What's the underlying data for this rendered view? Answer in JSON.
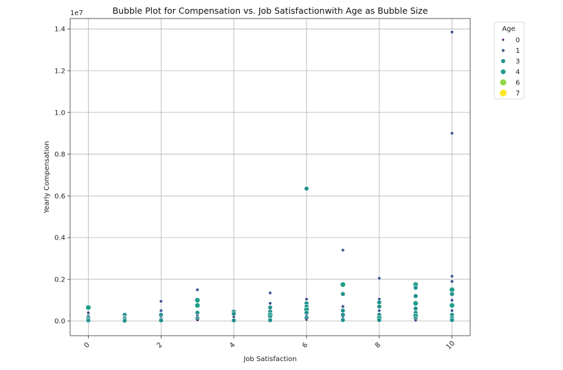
{
  "chart_data": {
    "type": "scatter",
    "title": "Bubble Plot for Compensation vs. Job Satisfactionwith Age as Bubble Size",
    "xlabel": "Job Satisfaction",
    "ylabel": "Yearly Compensation",
    "y_offset_label": "1e7",
    "xlim": [
      -0.5,
      10.5
    ],
    "ylim": [
      -0.07,
      1.45
    ],
    "y_scale_factor": 10000000,
    "x_ticks": [
      0,
      2,
      4,
      6,
      8,
      10
    ],
    "x_tick_labels": [
      "0",
      "2",
      "4",
      "6",
      "8",
      "10"
    ],
    "y_ticks": [
      0.0,
      0.2,
      0.4,
      0.6,
      0.8,
      1.0,
      1.2,
      1.4
    ],
    "y_tick_labels": [
      "0.0",
      "0.2",
      "0.4",
      "0.6",
      "0.8",
      "1.0",
      "1.2",
      "1.4"
    ],
    "grid": true,
    "legend": {
      "title": "Age",
      "placement": "outside-top-right",
      "entries": [
        {
          "label": "0",
          "age": 0,
          "color": "#440154"
        },
        {
          "label": "1",
          "age": 1,
          "color": "#3b528b"
        },
        {
          "label": "3",
          "age": 3,
          "color": "#21918c"
        },
        {
          "label": "4",
          "age": 4,
          "color": "#1f9e89"
        },
        {
          "label": "6",
          "age": 6,
          "color": "#8fd744"
        },
        {
          "label": "7",
          "age": 7,
          "color": "#fde725"
        }
      ]
    },
    "points": [
      {
        "x": 0,
        "y": 0.065,
        "age": 4
      },
      {
        "x": 0,
        "y": 0.04,
        "age": 1
      },
      {
        "x": 0,
        "y": 0.025,
        "age": 1
      },
      {
        "x": 0,
        "y": 0.015,
        "age": 3
      },
      {
        "x": 0,
        "y": 0.008,
        "age": 1
      },
      {
        "x": 0,
        "y": 0.003,
        "age": 3
      },
      {
        "x": 1,
        "y": 0.03,
        "age": 3
      },
      {
        "x": 1,
        "y": 0.02,
        "age": 1
      },
      {
        "x": 1,
        "y": 0.012,
        "age": 3
      },
      {
        "x": 1,
        "y": 0.006,
        "age": 1
      },
      {
        "x": 1,
        "y": 0.002,
        "age": 3
      },
      {
        "x": 2,
        "y": 0.095,
        "age": 1
      },
      {
        "x": 2,
        "y": 0.05,
        "age": 1
      },
      {
        "x": 2,
        "y": 0.03,
        "age": 3
      },
      {
        "x": 2,
        "y": 0.018,
        "age": 1
      },
      {
        "x": 2,
        "y": 0.008,
        "age": 3
      },
      {
        "x": 2,
        "y": 0.003,
        "age": 3
      },
      {
        "x": 3,
        "y": 0.15,
        "age": 1
      },
      {
        "x": 3,
        "y": 0.1,
        "age": 4
      },
      {
        "x": 3,
        "y": 0.075,
        "age": 4
      },
      {
        "x": 3,
        "y": 0.04,
        "age": 3
      },
      {
        "x": 3,
        "y": 0.025,
        "age": 1
      },
      {
        "x": 3,
        "y": 0.012,
        "age": 3
      },
      {
        "x": 3,
        "y": 0.004,
        "age": 0
      },
      {
        "x": 4,
        "y": 0.045,
        "age": 3
      },
      {
        "x": 4,
        "y": 0.035,
        "age": 3
      },
      {
        "x": 4,
        "y": 0.02,
        "age": 1
      },
      {
        "x": 4,
        "y": 0.008,
        "age": 1
      },
      {
        "x": 4,
        "y": 0.003,
        "age": 3
      },
      {
        "x": 5,
        "y": 0.135,
        "age": 1
      },
      {
        "x": 5,
        "y": 0.085,
        "age": 1
      },
      {
        "x": 5,
        "y": 0.065,
        "age": 3
      },
      {
        "x": 5,
        "y": 0.045,
        "age": 3
      },
      {
        "x": 5,
        "y": 0.03,
        "age": 4
      },
      {
        "x": 5,
        "y": 0.02,
        "age": 3
      },
      {
        "x": 5,
        "y": 0.01,
        "age": 1
      },
      {
        "x": 5,
        "y": 0.004,
        "age": 3
      },
      {
        "x": 6,
        "y": 0.635,
        "age": 3
      },
      {
        "x": 6,
        "y": 0.105,
        "age": 1
      },
      {
        "x": 6,
        "y": 0.085,
        "age": 3
      },
      {
        "x": 6,
        "y": 0.07,
        "age": 3
      },
      {
        "x": 6,
        "y": 0.055,
        "age": 4
      },
      {
        "x": 6,
        "y": 0.04,
        "age": 3
      },
      {
        "x": 6,
        "y": 0.025,
        "age": 1
      },
      {
        "x": 6,
        "y": 0.015,
        "age": 3
      },
      {
        "x": 6,
        "y": 0.006,
        "age": 0
      },
      {
        "x": 7,
        "y": 0.34,
        "age": 1
      },
      {
        "x": 7,
        "y": 0.175,
        "age": 4
      },
      {
        "x": 7,
        "y": 0.13,
        "age": 3
      },
      {
        "x": 7,
        "y": 0.07,
        "age": 1
      },
      {
        "x": 7,
        "y": 0.05,
        "age": 3
      },
      {
        "x": 7,
        "y": 0.03,
        "age": 3
      },
      {
        "x": 7,
        "y": 0.015,
        "age": 1
      },
      {
        "x": 7,
        "y": 0.005,
        "age": 3
      },
      {
        "x": 8,
        "y": 0.205,
        "age": 1
      },
      {
        "x": 8,
        "y": 0.105,
        "age": 1
      },
      {
        "x": 8,
        "y": 0.09,
        "age": 3
      },
      {
        "x": 8,
        "y": 0.07,
        "age": 3
      },
      {
        "x": 8,
        "y": 0.05,
        "age": 1
      },
      {
        "x": 8,
        "y": 0.03,
        "age": 3
      },
      {
        "x": 8,
        "y": 0.015,
        "age": 4
      },
      {
        "x": 8,
        "y": 0.005,
        "age": 3
      },
      {
        "x": 9,
        "y": 0.175,
        "age": 4
      },
      {
        "x": 9,
        "y": 0.16,
        "age": 3
      },
      {
        "x": 9,
        "y": 0.12,
        "age": 3
      },
      {
        "x": 9,
        "y": 0.085,
        "age": 4
      },
      {
        "x": 9,
        "y": 0.06,
        "age": 3
      },
      {
        "x": 9,
        "y": 0.04,
        "age": 3
      },
      {
        "x": 9,
        "y": 0.025,
        "age": 4
      },
      {
        "x": 9,
        "y": 0.012,
        "age": 3
      },
      {
        "x": 9,
        "y": 0.004,
        "age": 1
      },
      {
        "x": 10,
        "y": 1.385,
        "age": 1
      },
      {
        "x": 10,
        "y": 0.9,
        "age": 1
      },
      {
        "x": 10,
        "y": 0.215,
        "age": 1
      },
      {
        "x": 10,
        "y": 0.19,
        "age": 1
      },
      {
        "x": 10,
        "y": 0.15,
        "age": 4
      },
      {
        "x": 10,
        "y": 0.13,
        "age": 3
      },
      {
        "x": 10,
        "y": 0.1,
        "age": 1
      },
      {
        "x": 10,
        "y": 0.075,
        "age": 4
      },
      {
        "x": 10,
        "y": 0.05,
        "age": 1
      },
      {
        "x": 10,
        "y": 0.03,
        "age": 3
      },
      {
        "x": 10,
        "y": 0.015,
        "age": 3
      },
      {
        "x": 10,
        "y": 0.005,
        "age": 3
      }
    ]
  }
}
